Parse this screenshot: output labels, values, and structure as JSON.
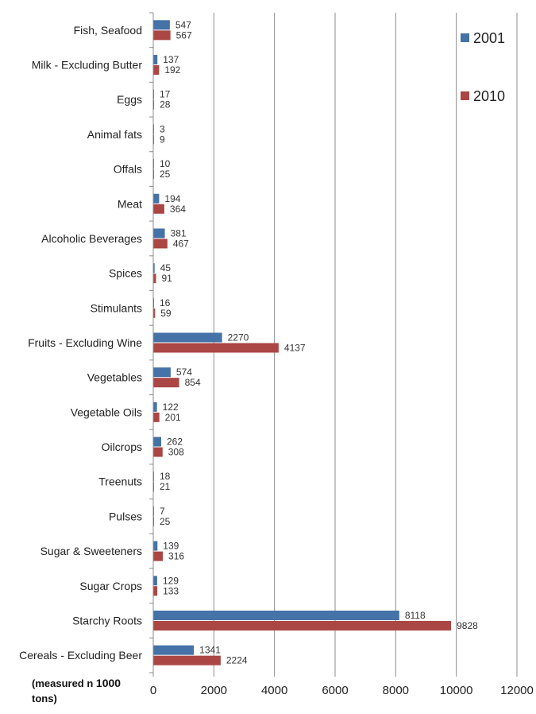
{
  "chart_data": {
    "type": "bar",
    "orientation": "horizontal",
    "categories": [
      "Fish, Seafood",
      "Milk - Excluding Butter",
      "Eggs",
      "Animal fats",
      "Offals",
      "Meat",
      "Alcoholic Beverages",
      "Spices",
      "Stimulants",
      "Fruits - Excluding Wine",
      "Vegetables",
      "Vegetable Oils",
      "Oilcrops",
      "Treenuts",
      "Pulses",
      "Sugar & Sweeteners",
      "Sugar Crops",
      "Starchy Roots",
      "Cereals - Excluding Beer"
    ],
    "series": [
      {
        "name": "2001",
        "color": "#4572A7",
        "values": [
          547,
          137,
          17,
          3,
          10,
          194,
          381,
          45,
          16,
          2270,
          574,
          122,
          262,
          18,
          7,
          139,
          129,
          8118,
          1341
        ]
      },
      {
        "name": "2010",
        "color": "#AA4643",
        "values": [
          567,
          192,
          28,
          9,
          25,
          364,
          467,
          91,
          59,
          4137,
          854,
          201,
          308,
          21,
          25,
          316,
          133,
          9828,
          2224
        ]
      }
    ],
    "xlim": [
      0,
      12000
    ],
    "xticks": [
      0,
      2000,
      4000,
      6000,
      8000,
      10000,
      12000
    ],
    "grid": "vertical",
    "legend_position": "top-right",
    "axis_note": {
      "part1": "(measured n ",
      "part2": "1000",
      "part3": "tons)"
    }
  }
}
